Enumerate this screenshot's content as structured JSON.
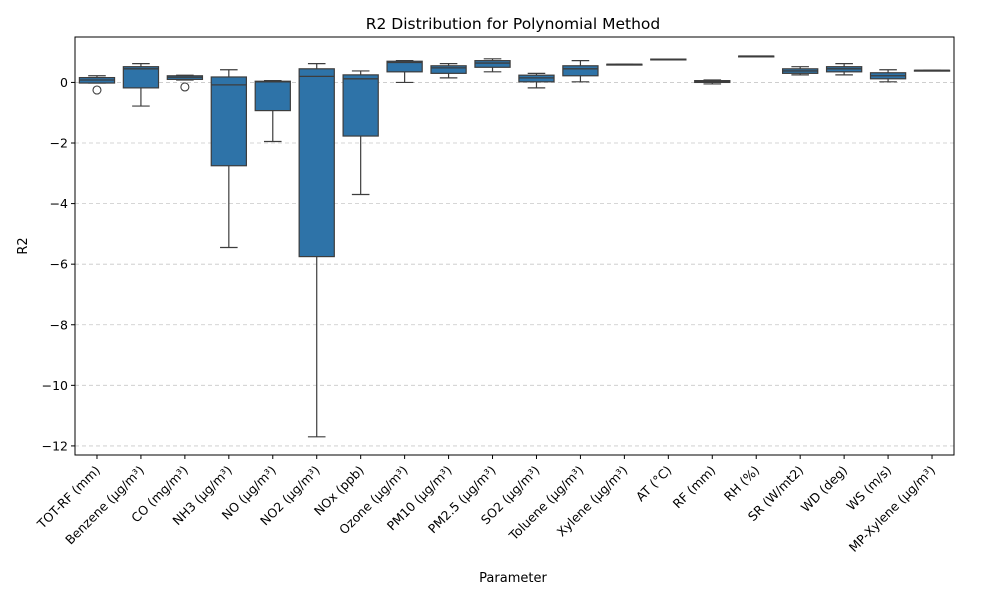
{
  "chart_data": {
    "type": "box",
    "title": "R2 Distribution for Polynomial Method",
    "xlabel": "Parameter",
    "ylabel": "R2",
    "ylim": [
      -12.3,
      1.5
    ],
    "yticks": [
      -12,
      -10,
      -8,
      -6,
      -4,
      -2,
      0
    ],
    "grid": "y-dashed",
    "box_color": "#2e73a8",
    "categories": [
      "TOT-RF (mm)",
      "Benzene (µg/m³)",
      "CO (mg/m³)",
      "NH3 (µg/m³)",
      "NO (µg/m³)",
      "NO2 (µg/m³)",
      "NOx (ppb)",
      "Ozone (µg/m³)",
      "PM10 (µg/m³)",
      "PM2.5 (µg/m³)",
      "SO2 (µg/m³)",
      "Toluene (µg/m³)",
      "Xylene (µg/m³)",
      "AT (°C)",
      "RF (mm)",
      "RH (%)",
      "SR (W/mt2)",
      "WD (deg)",
      "WS (m/s)",
      "MP-Xylene (µg/m³)"
    ],
    "boxes": [
      {
        "whisker_low": -0.02,
        "q1": -0.02,
        "median": 0.08,
        "q3": 0.16,
        "whisker_high": 0.22,
        "outliers": [
          -0.25
        ]
      },
      {
        "whisker_low": -0.78,
        "q1": -0.18,
        "median": 0.45,
        "q3": 0.52,
        "whisker_high": 0.62,
        "outliers": []
      },
      {
        "whisker_low": 0.08,
        "q1": 0.1,
        "median": 0.17,
        "q3": 0.22,
        "whisker_high": 0.24,
        "outliers": [
          -0.15
        ]
      },
      {
        "whisker_low": -5.45,
        "q1": -2.75,
        "median": -0.08,
        "q3": 0.18,
        "whisker_high": 0.42,
        "outliers": []
      },
      {
        "whisker_low": -1.95,
        "q1": -0.93,
        "median": 0.02,
        "q3": 0.04,
        "whisker_high": 0.06,
        "outliers": []
      },
      {
        "whisker_low": -11.7,
        "q1": -5.75,
        "median": 0.2,
        "q3": 0.45,
        "whisker_high": 0.62,
        "outliers": []
      },
      {
        "whisker_low": -3.7,
        "q1": -1.77,
        "median": 0.12,
        "q3": 0.25,
        "whisker_high": 0.38,
        "outliers": []
      },
      {
        "whisker_low": 0.0,
        "q1": 0.35,
        "median": 0.66,
        "q3": 0.7,
        "whisker_high": 0.72,
        "outliers": []
      },
      {
        "whisker_low": 0.15,
        "q1": 0.3,
        "median": 0.48,
        "q3": 0.55,
        "whisker_high": 0.62,
        "outliers": []
      },
      {
        "whisker_low": 0.35,
        "q1": 0.5,
        "median": 0.64,
        "q3": 0.72,
        "whisker_high": 0.78,
        "outliers": []
      },
      {
        "whisker_low": -0.18,
        "q1": 0.02,
        "median": 0.15,
        "q3": 0.24,
        "whisker_high": 0.3,
        "outliers": []
      },
      {
        "whisker_low": 0.02,
        "q1": 0.22,
        "median": 0.45,
        "q3": 0.55,
        "whisker_high": 0.72,
        "outliers": []
      },
      {
        "whisker_low": 0.6,
        "q1": 0.6,
        "median": 0.6,
        "q3": 0.6,
        "whisker_high": 0.6,
        "outliers": []
      },
      {
        "whisker_low": 0.77,
        "q1": 0.77,
        "median": 0.77,
        "q3": 0.77,
        "whisker_high": 0.77,
        "outliers": []
      },
      {
        "whisker_low": -0.05,
        "q1": 0.0,
        "median": 0.03,
        "q3": 0.06,
        "whisker_high": 0.08,
        "outliers": []
      },
      {
        "whisker_low": 0.87,
        "q1": 0.87,
        "median": 0.87,
        "q3": 0.87,
        "whisker_high": 0.87,
        "outliers": []
      },
      {
        "whisker_low": 0.25,
        "q1": 0.3,
        "median": 0.38,
        "q3": 0.45,
        "whisker_high": 0.52,
        "outliers": []
      },
      {
        "whisker_low": 0.25,
        "q1": 0.35,
        "median": 0.45,
        "q3": 0.52,
        "whisker_high": 0.62,
        "outliers": []
      },
      {
        "whisker_low": 0.02,
        "q1": 0.12,
        "median": 0.22,
        "q3": 0.32,
        "whisker_high": 0.42,
        "outliers": []
      },
      {
        "whisker_low": 0.4,
        "q1": 0.4,
        "median": 0.4,
        "q3": 0.4,
        "whisker_high": 0.4,
        "outliers": []
      }
    ]
  }
}
